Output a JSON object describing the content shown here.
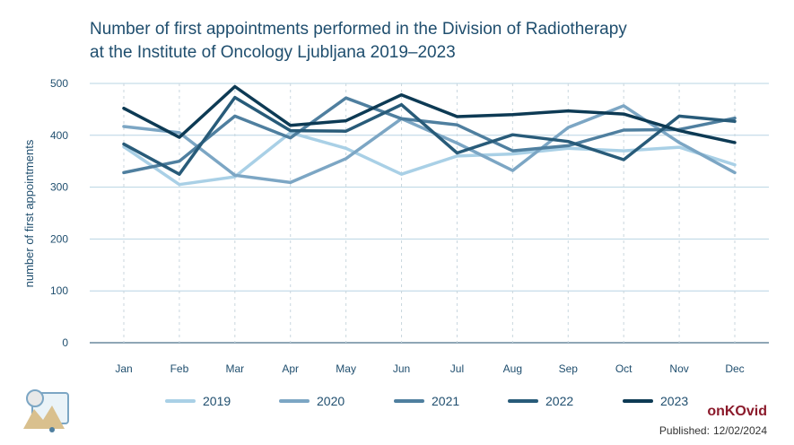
{
  "title_line1": "Number of first appointments performed in the Division of Radiotherapy",
  "title_line2": "at the Institute of Oncology Ljubljana 2019–2023",
  "brand": "onKOvid",
  "published_label": "Published:",
  "published_date": "12/02/2024",
  "chart_data": {
    "type": "line",
    "title": "Number of first appointments performed in the Division of Radiotherapy at the Institute of Oncology Ljubljana 2019–2023",
    "xlabel": "",
    "ylabel": "number of first appointments",
    "categories": [
      "Jan",
      "Feb",
      "Mar",
      "Apr",
      "May",
      "Jun",
      "Jul",
      "Aug",
      "Sep",
      "Oct",
      "Nov",
      "Dec"
    ],
    "ylim": [
      0,
      500
    ],
    "yticks": [
      0,
      100,
      200,
      300,
      400,
      500
    ],
    "grid": "horizontal",
    "legend": "bottom",
    "series": [
      {
        "name": "2019",
        "color": "#a9d0e6",
        "values": [
          378,
          305,
          320,
          405,
          375,
          325,
          360,
          364,
          375,
          370,
          377,
          343
        ]
      },
      {
        "name": "2020",
        "color": "#7ca6c4",
        "values": [
          417,
          405,
          323,
          309,
          355,
          432,
          385,
          332,
          415,
          457,
          386,
          328
        ]
      },
      {
        "name": "2021",
        "color": "#4f7f9f",
        "values": [
          328,
          350,
          437,
          395,
          472,
          432,
          420,
          370,
          380,
          410,
          411,
          433
        ]
      },
      {
        "name": "2022",
        "color": "#285b79",
        "values": [
          383,
          325,
          473,
          409,
          408,
          459,
          366,
          401,
          388,
          353,
          437,
          427
        ]
      },
      {
        "name": "2023",
        "color": "#0d3a54",
        "values": [
          452,
          396,
          494,
          419,
          428,
          478,
          436,
          440,
          447,
          441,
          409,
          386
        ]
      }
    ]
  }
}
